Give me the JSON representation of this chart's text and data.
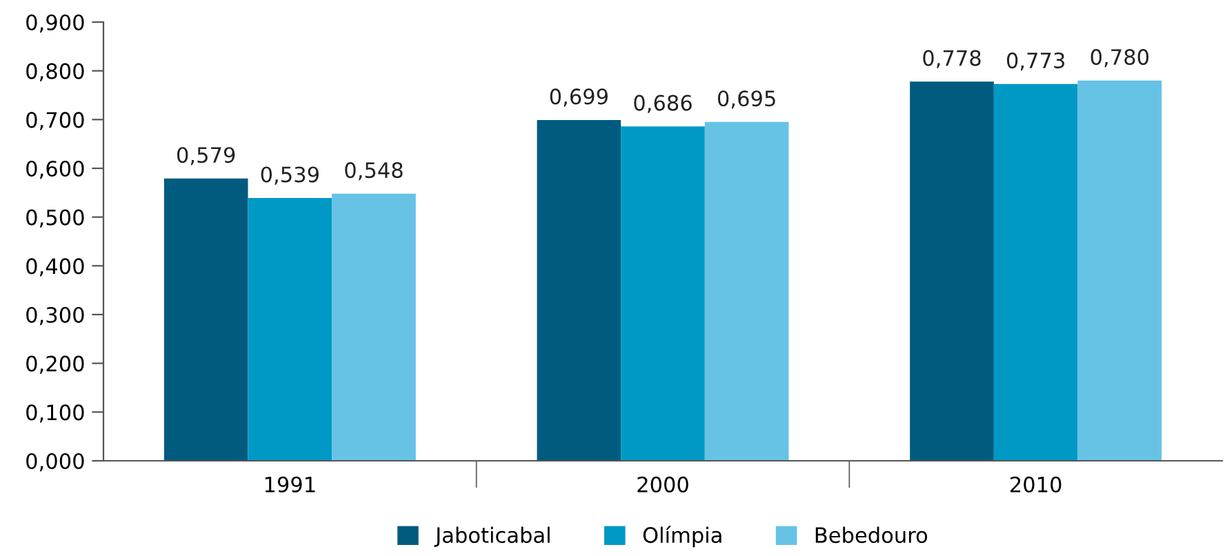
{
  "chart_data": {
    "type": "bar",
    "categories": [
      "1991",
      "2000",
      "2010"
    ],
    "series": [
      {
        "name": "Jaboticabal",
        "color": "#005b7f",
        "values": [
          0.579,
          0.699,
          0.778
        ],
        "value_labels": [
          "0,579",
          "0,699",
          "0,778"
        ]
      },
      {
        "name": "Olímpia",
        "color": "#0099c6",
        "values": [
          0.539,
          0.686,
          0.773
        ],
        "value_labels": [
          "0,539",
          "0,686",
          "0,773"
        ]
      },
      {
        "name": "Bebedouro",
        "color": "#66c3e6",
        "values": [
          0.548,
          0.695,
          0.78
        ],
        "value_labels": [
          "0,548",
          "0,695",
          "0,780"
        ]
      }
    ],
    "ylim": [
      0,
      0.9
    ],
    "yticks": [
      {
        "value": 0,
        "label": "0,000"
      },
      {
        "value": 0.1,
        "label": "0,100"
      },
      {
        "value": 0.2,
        "label": "0,200"
      },
      {
        "value": 0.3,
        "label": "0,300"
      },
      {
        "value": 0.4,
        "label": "0,400"
      },
      {
        "value": 0.5,
        "label": "0,500"
      },
      {
        "value": 0.6,
        "label": "0,600"
      },
      {
        "value": 0.7,
        "label": "0,700"
      },
      {
        "value": 0.8,
        "label": "0,800"
      },
      {
        "value": 0.9,
        "label": "0,900"
      }
    ],
    "grid": false,
    "legend": "bottom"
  }
}
